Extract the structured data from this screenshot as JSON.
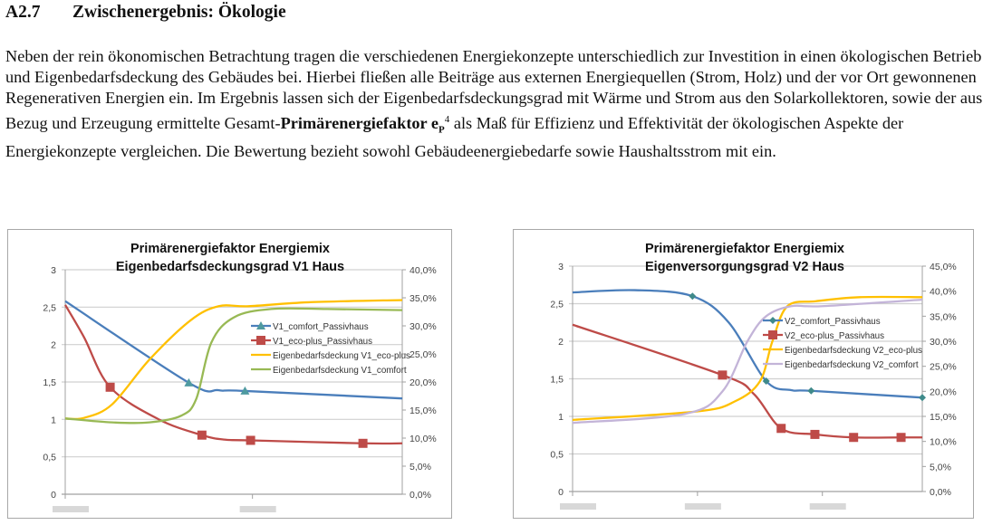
{
  "heading": {
    "number": "A2.7",
    "title": "Zwischenergebnis: Ökologie"
  },
  "paragraph": {
    "text_before": "Neben der rein ökonomischen Betrachtung tragen die verschiedenen Energiekonzepte unterschiedlich zur Investition in einen ökologischen Betrieb und Eigenbedarfsdeckung des Gebäudes bei. Hierbei fließen alle Beiträge aus externen Energiequellen (Strom, Holz) und der vor Ort gewonnenen Regenerativen Energien ein. Im Ergebnis lassen sich der Eigenbedarfsdeckungsgrad mit Wärme und Strom aus den Solarkollektoren, sowie der aus Bezug und Erzeugung ermittelte Gesamt-",
    "bold_term": "Primärenergiefaktor e",
    "bold_subscript": "P",
    "footnote": "4",
    "text_after": " als Maß für Effizienz und Effektivität der ökologischen Aspekte der Energiekonzepte vergleichen. Die Bewertung bezieht sowohl Gebäudeenergiebedarfe sowie Haushaltsstrom mit ein."
  },
  "chart_data": [
    {
      "type": "line",
      "title": [
        "Primärenergiefaktor Energiemix",
        "Eigenbedarfsdeckungsgrad V1 Haus"
      ],
      "xlim": [
        0,
        1.8
      ],
      "x_ticks": [
        0,
        1
      ],
      "ylim_left": [
        0,
        3
      ],
      "yticks_left": [
        "0",
        "0,5",
        "1",
        "1,5",
        "2",
        "2,5",
        "3"
      ],
      "ylim_right": [
        0,
        40
      ],
      "yticks_right": [
        "0,0%",
        "5,0%",
        "10,0%",
        "15,0%",
        "20,0%",
        "25,0%",
        "30,0%",
        "35,0%",
        "40,0%"
      ],
      "grid": true,
      "legend": "center-right inside plot",
      "series": [
        {
          "name": "V1_comfort_Passivhaus",
          "axis": "left",
          "color": "#4a7ebb",
          "marker": "triangle",
          "points": [
            [
              0,
              2.58,
              0
            ],
            [
              0.66,
              1.49,
              1
            ],
            [
              0.82,
              1.39,
              0
            ],
            [
              0.96,
              1.38,
              1
            ],
            [
              1.8,
              1.28,
              0
            ]
          ]
        },
        {
          "name": "V1_eco-plus_Passivhaus",
          "axis": "left",
          "color": "#be4b48",
          "marker": "square",
          "points": [
            [
              0,
              2.53,
              0
            ],
            [
              0.1,
              2.1,
              0
            ],
            [
              0.24,
              1.43,
              1
            ],
            [
              0.5,
              1.0,
              0
            ],
            [
              0.73,
              0.79,
              1
            ],
            [
              0.85,
              0.73,
              0
            ],
            [
              0.99,
              0.72,
              1
            ],
            [
              1.59,
              0.68,
              1
            ],
            [
              1.8,
              0.68,
              0
            ]
          ]
        },
        {
          "name": "Eigenbedarfsdeckung V1_eco-plus",
          "axis": "right",
          "color": "#ffc000",
          "marker": "none",
          "points": [
            [
              0,
              13.5,
              0
            ],
            [
              0.1,
              13.6,
              0
            ],
            [
              0.25,
              16,
              0
            ],
            [
              0.45,
              24,
              0
            ],
            [
              0.67,
              31,
              0
            ],
            [
              0.82,
              33.5,
              0
            ],
            [
              0.98,
              33.5,
              0
            ],
            [
              1.3,
              34.2,
              0
            ],
            [
              1.8,
              34.6,
              0
            ]
          ]
        },
        {
          "name": "Eigenbedarfsdeckung V1_comfort",
          "axis": "right",
          "color": "#98b954",
          "marker": "none",
          "points": [
            [
              0,
              13.5,
              0
            ],
            [
              0.25,
              12.8,
              0
            ],
            [
              0.45,
              12.8,
              0
            ],
            [
              0.62,
              14,
              0
            ],
            [
              0.7,
              17,
              0
            ],
            [
              0.78,
              27,
              0
            ],
            [
              0.9,
              31.5,
              0
            ],
            [
              1.1,
              33,
              0
            ],
            [
              1.4,
              33,
              0
            ],
            [
              1.8,
              32.8,
              0
            ]
          ]
        }
      ]
    },
    {
      "type": "line",
      "title": [
        "Primärenergiefaktor Energiemix",
        "Eigenversorgungsgrad V2 Haus"
      ],
      "xlim": [
        0,
        2.8
      ],
      "x_ticks": [
        0,
        1,
        2
      ],
      "ylim_left": [
        0,
        3
      ],
      "yticks_left": [
        "0",
        "0,5",
        "1",
        "1,5",
        "2",
        "2,5",
        "3"
      ],
      "ylim_right": [
        0,
        45
      ],
      "yticks_right": [
        "0,0%",
        "5,0%",
        "10,0%",
        "15,0%",
        "20,0%",
        "25,0%",
        "30,0%",
        "35,0%",
        "40,0%",
        "45,0%"
      ],
      "grid": true,
      "legend": "center-right inside plot",
      "series": [
        {
          "name": "V2_comfort_Passivhaus",
          "axis": "left",
          "color": "#4a7ebb",
          "marker": "diamond",
          "points": [
            [
              0,
              2.65,
              0
            ],
            [
              0.5,
              2.68,
              0
            ],
            [
              0.96,
              2.6,
              1
            ],
            [
              1.25,
              2.25,
              0
            ],
            [
              1.55,
              1.47,
              1
            ],
            [
              1.75,
              1.35,
              0
            ],
            [
              1.91,
              1.34,
              1
            ],
            [
              2.8,
              1.25,
              1
            ]
          ]
        },
        {
          "name": "V2_eco-plus_Passivhaus",
          "axis": "left",
          "color": "#be4b48",
          "marker": "square",
          "points": [
            [
              0,
              2.22,
              0
            ],
            [
              1.2,
              1.55,
              1
            ],
            [
              1.45,
              1.3,
              0
            ],
            [
              1.67,
              0.84,
              1
            ],
            [
              1.94,
              0.76,
              1
            ],
            [
              2.25,
              0.72,
              1
            ],
            [
              2.63,
              0.72,
              1
            ],
            [
              2.8,
              0.72,
              0
            ]
          ]
        },
        {
          "name": "Eigenbedarfsdeckung V2_eco-plus",
          "axis": "right",
          "color": "#ffc000",
          "marker": "none",
          "points": [
            [
              0,
              14.3,
              0
            ],
            [
              1.0,
              16,
              0
            ],
            [
              1.3,
              18,
              0
            ],
            [
              1.5,
              22,
              0
            ],
            [
              1.6,
              30,
              0
            ],
            [
              1.72,
              37,
              0
            ],
            [
              1.95,
              38,
              0
            ],
            [
              2.3,
              38.8,
              0
            ],
            [
              2.8,
              38.8,
              0
            ]
          ]
        },
        {
          "name": "Eigenbedarfsdeckung V2_comfort",
          "axis": "right",
          "color": "#c3b4d8",
          "marker": "none",
          "points": [
            [
              0,
              13.7,
              0
            ],
            [
              0.9,
              15.5,
              0
            ],
            [
              1.2,
              20,
              0
            ],
            [
              1.4,
              30,
              0
            ],
            [
              1.55,
              35,
              0
            ],
            [
              1.75,
              37,
              0
            ],
            [
              2.0,
              37,
              0
            ],
            [
              2.8,
              38.3,
              0
            ]
          ]
        }
      ]
    }
  ]
}
